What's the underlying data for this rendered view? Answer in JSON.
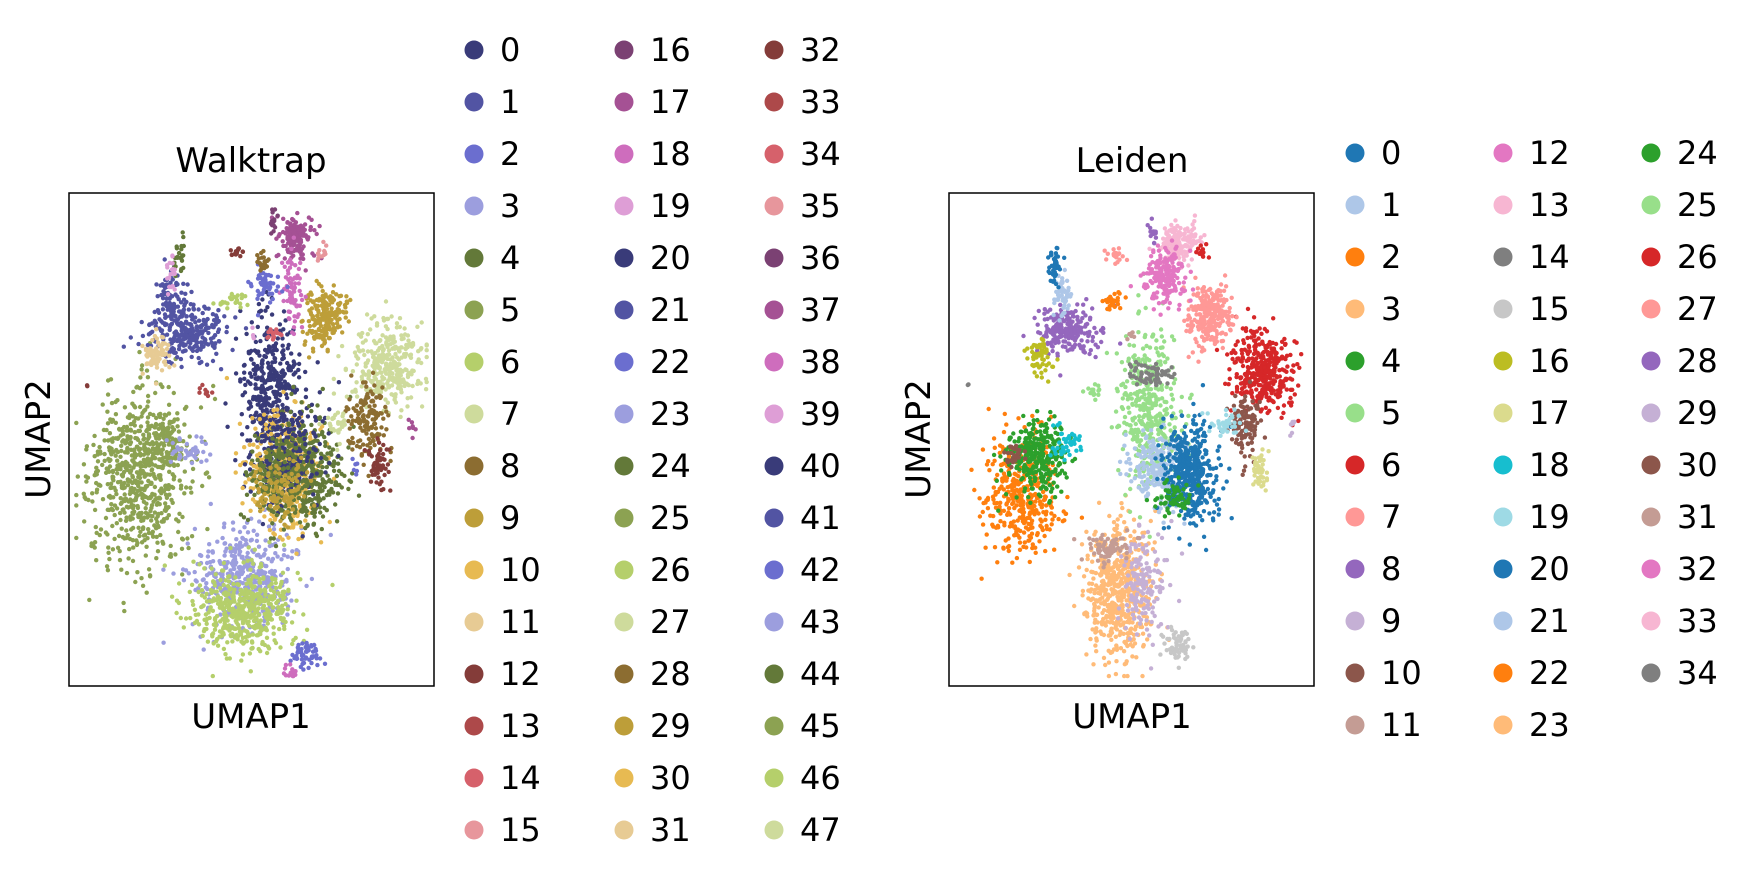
{
  "chart_data": [
    {
      "type": "scatter",
      "title": "Walktrap",
      "xlabel": "UMAP1",
      "ylabel": "UMAP2",
      "grid": false,
      "ticks": false,
      "legend_position": "right",
      "legend_columns": 3,
      "categories": [
        "0",
        "1",
        "2",
        "3",
        "4",
        "5",
        "6",
        "7",
        "8",
        "9",
        "10",
        "11",
        "12",
        "13",
        "14",
        "15",
        "16",
        "17",
        "18",
        "19",
        "20",
        "21",
        "22",
        "23",
        "24",
        "25",
        "26",
        "27",
        "28",
        "29",
        "30",
        "31",
        "32",
        "33",
        "34",
        "35",
        "36",
        "37",
        "38",
        "39",
        "40",
        "41",
        "42",
        "43",
        "44",
        "45",
        "46",
        "47"
      ],
      "colors": [
        "#393b79",
        "#5254a3",
        "#6b6ecf",
        "#9c9ede",
        "#637939",
        "#8ca252",
        "#b5cf6b",
        "#cedb9c",
        "#8c6d31",
        "#bd9e39",
        "#e7ba52",
        "#e7cb94",
        "#843c39",
        "#ad494a",
        "#d6616b",
        "#e7969c",
        "#7b4173",
        "#a55194",
        "#ce6dbd",
        "#de9ed6",
        "#393b79",
        "#5254a3",
        "#6b6ecf",
        "#9c9ede",
        "#637939",
        "#8ca252",
        "#b5cf6b",
        "#cedb9c",
        "#8c6d31",
        "#bd9e39",
        "#e7ba52",
        "#e7cb94",
        "#843c39",
        "#ad494a",
        "#d6616b",
        "#e7969c",
        "#7b4173",
        "#a55194",
        "#ce6dbd",
        "#de9ed6",
        "#393b79",
        "#5254a3",
        "#6b6ecf",
        "#9c9ede",
        "#637939",
        "#8ca252",
        "#b5cf6b",
        "#cedb9c"
      ],
      "clusters": [
        {
          "c": 25,
          "x": 0.19,
          "y": 0.58,
          "sx": 0.07,
          "sy": 0.09,
          "n": 650
        },
        {
          "c": 5,
          "x": 0.26,
          "y": 0.51,
          "sx": 0.03,
          "sy": 0.03,
          "n": 120
        },
        {
          "c": 43,
          "x": 0.33,
          "y": 0.52,
          "sx": 0.03,
          "sy": 0.015,
          "n": 40
        },
        {
          "c": 3,
          "x": 0.48,
          "y": 0.78,
          "sx": 0.07,
          "sy": 0.05,
          "n": 420
        },
        {
          "c": 6,
          "x": 0.47,
          "y": 0.85,
          "sx": 0.07,
          "sy": 0.04,
          "n": 380
        },
        {
          "c": 46,
          "x": 0.52,
          "y": 0.83,
          "sx": 0.05,
          "sy": 0.04,
          "n": 120
        },
        {
          "c": 2,
          "x": 0.65,
          "y": 0.94,
          "sx": 0.02,
          "sy": 0.015,
          "n": 50
        },
        {
          "c": 38,
          "x": 0.61,
          "y": 0.97,
          "sx": 0.01,
          "sy": 0.008,
          "n": 15
        },
        {
          "c": 40,
          "x": 0.55,
          "y": 0.4,
          "sx": 0.04,
          "sy": 0.08,
          "n": 380
        },
        {
          "c": 10,
          "x": 0.59,
          "y": 0.56,
          "sx": 0.05,
          "sy": 0.06,
          "n": 420
        },
        {
          "c": 44,
          "x": 0.65,
          "y": 0.57,
          "sx": 0.05,
          "sy": 0.05,
          "n": 380
        },
        {
          "c": 20,
          "x": 0.6,
          "y": 0.52,
          "sx": 0.05,
          "sy": 0.06,
          "n": 180
        },
        {
          "c": 24,
          "x": 0.56,
          "y": 0.58,
          "sx": 0.04,
          "sy": 0.04,
          "n": 150
        },
        {
          "c": 9,
          "x": 0.58,
          "y": 0.6,
          "sx": 0.04,
          "sy": 0.03,
          "n": 100
        },
        {
          "c": 21,
          "x": 0.32,
          "y": 0.28,
          "sx": 0.05,
          "sy": 0.03,
          "n": 280
        },
        {
          "c": 1,
          "x": 0.28,
          "y": 0.21,
          "sx": 0.02,
          "sy": 0.03,
          "n": 60
        },
        {
          "c": 11,
          "x": 0.24,
          "y": 0.33,
          "sx": 0.02,
          "sy": 0.02,
          "n": 70
        },
        {
          "c": 4,
          "x": 0.3,
          "y": 0.13,
          "sx": 0.008,
          "sy": 0.02,
          "n": 25
        },
        {
          "c": 19,
          "x": 0.28,
          "y": 0.17,
          "sx": 0.008,
          "sy": 0.02,
          "n": 20
        },
        {
          "c": 7,
          "x": 0.87,
          "y": 0.35,
          "sx": 0.05,
          "sy": 0.04,
          "n": 320
        },
        {
          "c": 28,
          "x": 0.82,
          "y": 0.46,
          "sx": 0.025,
          "sy": 0.04,
          "n": 140
        },
        {
          "c": 12,
          "x": 0.85,
          "y": 0.55,
          "sx": 0.015,
          "sy": 0.02,
          "n": 60
        },
        {
          "c": 27,
          "x": 0.73,
          "y": 0.47,
          "sx": 0.015,
          "sy": 0.02,
          "n": 30
        },
        {
          "c": 29,
          "x": 0.7,
          "y": 0.25,
          "sx": 0.03,
          "sy": 0.03,
          "n": 200
        },
        {
          "c": 17,
          "x": 0.62,
          "y": 0.09,
          "sx": 0.025,
          "sy": 0.02,
          "n": 150
        },
        {
          "c": 18,
          "x": 0.61,
          "y": 0.2,
          "sx": 0.015,
          "sy": 0.04,
          "n": 70
        },
        {
          "c": 22,
          "x": 0.54,
          "y": 0.19,
          "sx": 0.02,
          "sy": 0.015,
          "n": 50
        },
        {
          "c": 28,
          "x": 0.53,
          "y": 0.14,
          "sx": 0.01,
          "sy": 0.01,
          "n": 20
        },
        {
          "c": 36,
          "x": 0.56,
          "y": 0.06,
          "sx": 0.006,
          "sy": 0.015,
          "n": 15
        },
        {
          "c": 12,
          "x": 0.46,
          "y": 0.12,
          "sx": 0.01,
          "sy": 0.005,
          "n": 15
        },
        {
          "c": 15,
          "x": 0.69,
          "y": 0.12,
          "sx": 0.01,
          "sy": 0.008,
          "n": 12
        },
        {
          "c": 6,
          "x": 0.44,
          "y": 0.22,
          "sx": 0.02,
          "sy": 0.008,
          "n": 25
        },
        {
          "c": 14,
          "x": 0.56,
          "y": 0.29,
          "sx": 0.01,
          "sy": 0.01,
          "n": 15
        },
        {
          "c": 39,
          "x": 0.5,
          "y": 0.29,
          "sx": 0.005,
          "sy": 0.005,
          "n": 4
        },
        {
          "c": 13,
          "x": 0.38,
          "y": 0.4,
          "sx": 0.01,
          "sy": 0.01,
          "n": 8
        },
        {
          "c": 42,
          "x": 0.78,
          "y": 0.55,
          "sx": 0.006,
          "sy": 0.01,
          "n": 6
        },
        {
          "c": 37,
          "x": 0.94,
          "y": 0.48,
          "sx": 0.005,
          "sy": 0.01,
          "n": 8
        },
        {
          "c": 32,
          "x": 0.05,
          "y": 0.39,
          "sx": 0.002,
          "sy": 0.002,
          "n": 2
        }
      ]
    },
    {
      "type": "scatter",
      "title": "Leiden",
      "xlabel": "UMAP1",
      "ylabel": "UMAP2",
      "grid": false,
      "ticks": false,
      "legend_position": "right",
      "legend_columns": 3,
      "categories": [
        "0",
        "1",
        "2",
        "3",
        "4",
        "5",
        "6",
        "7",
        "8",
        "9",
        "10",
        "11",
        "12",
        "13",
        "14",
        "15",
        "16",
        "17",
        "18",
        "19",
        "20",
        "21",
        "22",
        "23",
        "24",
        "25",
        "26",
        "27",
        "28",
        "29",
        "30",
        "31",
        "32",
        "33",
        "34"
      ],
      "colors": [
        "#1f77b4",
        "#aec7e8",
        "#ff7f0e",
        "#ffbb78",
        "#2ca02c",
        "#98df8a",
        "#d62728",
        "#ff9896",
        "#9467bd",
        "#c5b0d5",
        "#8c564b",
        "#c49c94",
        "#e377c2",
        "#f7b6d2",
        "#7f7f7f",
        "#c7c7c7",
        "#bcbd22",
        "#dbdb8d",
        "#17becf",
        "#9edae5",
        "#1f77b4",
        "#aec7e8",
        "#ff7f0e",
        "#ffbb78",
        "#2ca02c",
        "#98df8a",
        "#d62728",
        "#ff9896",
        "#9467bd",
        "#c5b0d5",
        "#8c564b",
        "#c49c94",
        "#e377c2",
        "#f7b6d2",
        "#7f7f7f"
      ],
      "clusters": [
        {
          "c": 2,
          "x": 0.2,
          "y": 0.61,
          "sx": 0.05,
          "sy": 0.06,
          "n": 380
        },
        {
          "c": 4,
          "x": 0.24,
          "y": 0.53,
          "sx": 0.04,
          "sy": 0.04,
          "n": 300
        },
        {
          "c": 30,
          "x": 0.18,
          "y": 0.53,
          "sx": 0.015,
          "sy": 0.015,
          "n": 30
        },
        {
          "c": 18,
          "x": 0.32,
          "y": 0.51,
          "sx": 0.02,
          "sy": 0.015,
          "n": 40
        },
        {
          "c": 3,
          "x": 0.46,
          "y": 0.81,
          "sx": 0.05,
          "sy": 0.07,
          "n": 550
        },
        {
          "c": 9,
          "x": 0.53,
          "y": 0.8,
          "sx": 0.03,
          "sy": 0.05,
          "n": 150
        },
        {
          "c": 31,
          "x": 0.44,
          "y": 0.72,
          "sx": 0.03,
          "sy": 0.015,
          "n": 70
        },
        {
          "c": 15,
          "x": 0.63,
          "y": 0.92,
          "sx": 0.02,
          "sy": 0.02,
          "n": 60
        },
        {
          "c": 5,
          "x": 0.55,
          "y": 0.44,
          "sx": 0.04,
          "sy": 0.08,
          "n": 400
        },
        {
          "c": 21,
          "x": 0.57,
          "y": 0.56,
          "sx": 0.04,
          "sy": 0.04,
          "n": 200
        },
        {
          "c": 0,
          "x": 0.66,
          "y": 0.57,
          "sx": 0.035,
          "sy": 0.05,
          "n": 450
        },
        {
          "c": 24,
          "x": 0.61,
          "y": 0.62,
          "sx": 0.03,
          "sy": 0.015,
          "n": 60
        },
        {
          "c": 14,
          "x": 0.55,
          "y": 0.37,
          "sx": 0.03,
          "sy": 0.012,
          "n": 60
        },
        {
          "c": 6,
          "x": 0.86,
          "y": 0.36,
          "sx": 0.04,
          "sy": 0.04,
          "n": 380
        },
        {
          "c": 10,
          "x": 0.81,
          "y": 0.47,
          "sx": 0.02,
          "sy": 0.03,
          "n": 120
        },
        {
          "c": 19,
          "x": 0.76,
          "y": 0.47,
          "sx": 0.02,
          "sy": 0.015,
          "n": 40
        },
        {
          "c": 17,
          "x": 0.85,
          "y": 0.56,
          "sx": 0.012,
          "sy": 0.02,
          "n": 50
        },
        {
          "c": 7,
          "x": 0.71,
          "y": 0.25,
          "sx": 0.03,
          "sy": 0.03,
          "n": 260
        },
        {
          "c": 13,
          "x": 0.63,
          "y": 0.1,
          "sx": 0.025,
          "sy": 0.02,
          "n": 160
        },
        {
          "c": 12,
          "x": 0.59,
          "y": 0.17,
          "sx": 0.03,
          "sy": 0.03,
          "n": 180
        },
        {
          "c": 26,
          "x": 0.69,
          "y": 0.12,
          "sx": 0.01,
          "sy": 0.008,
          "n": 15
        },
        {
          "c": 27,
          "x": 0.46,
          "y": 0.13,
          "sx": 0.015,
          "sy": 0.008,
          "n": 20
        },
        {
          "c": 28,
          "x": 0.33,
          "y": 0.28,
          "sx": 0.04,
          "sy": 0.025,
          "n": 220
        },
        {
          "c": 1,
          "x": 0.31,
          "y": 0.21,
          "sx": 0.012,
          "sy": 0.02,
          "n": 50
        },
        {
          "c": 20,
          "x": 0.29,
          "y": 0.15,
          "sx": 0.008,
          "sy": 0.02,
          "n": 40
        },
        {
          "c": 16,
          "x": 0.25,
          "y": 0.33,
          "sx": 0.015,
          "sy": 0.018,
          "n": 60
        },
        {
          "c": 22,
          "x": 0.45,
          "y": 0.22,
          "sx": 0.015,
          "sy": 0.01,
          "n": 30
        },
        {
          "c": 8,
          "x": 0.56,
          "y": 0.08,
          "sx": 0.006,
          "sy": 0.012,
          "n": 15
        },
        {
          "c": 25,
          "x": 0.4,
          "y": 0.4,
          "sx": 0.015,
          "sy": 0.008,
          "n": 15
        },
        {
          "c": 29,
          "x": 0.94,
          "y": 0.48,
          "sx": 0.004,
          "sy": 0.01,
          "n": 8
        },
        {
          "c": 34,
          "x": 0.05,
          "y": 0.39,
          "sx": 0.002,
          "sy": 0.002,
          "n": 2
        },
        {
          "c": 11,
          "x": 0.5,
          "y": 0.29,
          "sx": 0.006,
          "sy": 0.006,
          "n": 6
        }
      ]
    }
  ]
}
